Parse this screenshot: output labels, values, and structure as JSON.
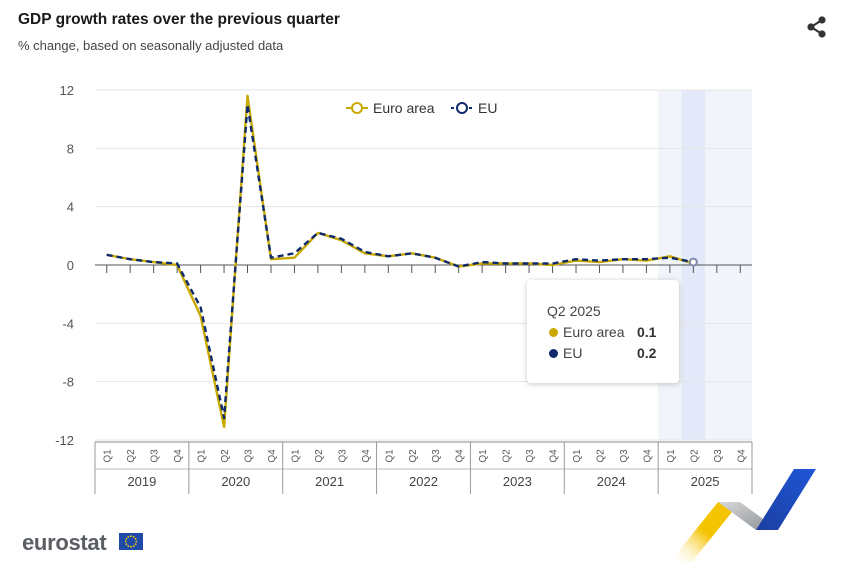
{
  "header": {
    "title": "GDP growth rates over the previous quarter",
    "subtitle": "% change, based on seasonally adjusted data",
    "share_icon": "share-icon"
  },
  "chart_data": {
    "type": "line",
    "title": "GDP growth rates over the previous quarter",
    "subtitle": "% change, based on seasonally adjusted data",
    "xlabel": "",
    "ylabel": "",
    "ylim": [
      -12,
      12
    ],
    "yticks": [
      "12",
      "8",
      "4",
      "0",
      "-4",
      "-8",
      "-12"
    ],
    "quarter_labels": [
      "Q1",
      "Q2",
      "Q3",
      "Q4",
      "Q1",
      "Q2",
      "Q3",
      "Q4",
      "Q1",
      "Q2",
      "Q3",
      "Q4",
      "Q1",
      "Q2",
      "Q3",
      "Q4",
      "Q1",
      "Q2",
      "Q3",
      "Q4",
      "Q1",
      "Q2",
      "Q3",
      "Q4",
      "Q1",
      "Q2",
      "Q3",
      "Q4"
    ],
    "years": [
      "2019",
      "2020",
      "2021",
      "2022",
      "2023",
      "2024",
      "2025"
    ],
    "grid": true,
    "legend_position": "top",
    "highlighted_category": "Q2 2025",
    "series": [
      {
        "name": "Euro area",
        "color": "#c9a800",
        "values": [
          0.7,
          0.4,
          0.2,
          0.0,
          -3.5,
          -11.1,
          11.6,
          0.4,
          0.5,
          2.2,
          1.7,
          0.8,
          0.6,
          0.8,
          0.5,
          -0.1,
          0.1,
          0.1,
          0.1,
          0.0,
          0.3,
          0.2,
          0.4,
          0.3,
          0.6,
          0.1,
          null,
          null
        ]
      },
      {
        "name": "EU",
        "color": "#0e2a6b",
        "values": [
          0.7,
          0.4,
          0.2,
          0.1,
          -2.9,
          -10.5,
          11.0,
          0.5,
          0.8,
          2.2,
          1.8,
          0.9,
          0.6,
          0.8,
          0.5,
          -0.1,
          0.2,
          0.1,
          0.1,
          0.1,
          0.4,
          0.3,
          0.4,
          0.4,
          0.5,
          0.2,
          null,
          null
        ]
      }
    ]
  },
  "tooltip": {
    "title": "Q2 2025",
    "rows": [
      {
        "name": "Euro area",
        "value": "0.1",
        "color": "#c9a800"
      },
      {
        "name": "EU",
        "value": "0.2",
        "color": "#0e2a6b"
      }
    ]
  },
  "footer": {
    "logo_text": "eurostat",
    "flag_icon": "eu-flag-icon"
  }
}
